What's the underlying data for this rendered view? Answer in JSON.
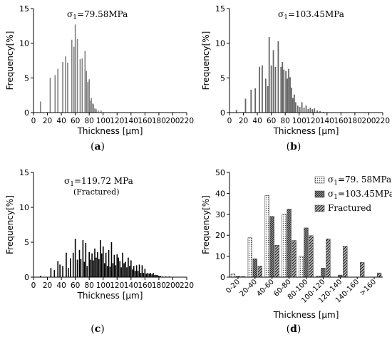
{
  "chart_data": [
    {
      "type": "bar",
      "panel_caption": "(a)",
      "annotation": "σ1=79.58MPa",
      "xlabel": "Thickness [μm]",
      "ylabel": "Frequency[%]",
      "xlim": [
        0,
        220
      ],
      "ylim": [
        0,
        15
      ],
      "x_ticks": [
        0,
        20,
        40,
        60,
        80,
        100,
        120,
        140,
        160,
        180,
        200,
        220
      ],
      "y_ticks": [
        0,
        5,
        10,
        15
      ],
      "grid": false,
      "color": "#808080",
      "x": [
        10,
        24,
        31,
        35,
        42,
        46,
        49,
        55,
        58,
        60,
        63,
        67,
        70,
        74,
        76,
        78,
        80,
        81,
        83,
        85,
        86,
        88,
        90,
        93,
        97
      ],
      "values": [
        1.6,
        5.0,
        5.4,
        6.3,
        7.3,
        8.1,
        7.2,
        10.5,
        9.5,
        12.7,
        10.6,
        7.7,
        7.8,
        8.9,
        6.0,
        4.4,
        4.8,
        1.7,
        2.1,
        1.3,
        1.2,
        0.6,
        0.5,
        0.3,
        0.3
      ]
    },
    {
      "type": "bar",
      "panel_caption": "(b)",
      "annotation": "σ1=103.45MPa",
      "xlabel": "Thickness [μm]",
      "ylabel": "Frequency[%]",
      "xlim": [
        0,
        220
      ],
      "ylim": [
        0,
        15
      ],
      "x_ticks": [
        0,
        20,
        40,
        60,
        80,
        100,
        120,
        140,
        160,
        180,
        200,
        220
      ],
      "y_ticks": [
        0,
        5,
        10,
        15
      ],
      "grid": false,
      "color": "#666666",
      "x": [
        10,
        23,
        31,
        37,
        43,
        47,
        52,
        55,
        57,
        60,
        63,
        66,
        70,
        74,
        76,
        78,
        81,
        83,
        85,
        87,
        89,
        91,
        93,
        95,
        98,
        101,
        104,
        107,
        110,
        113,
        116,
        119,
        122,
        126,
        130,
        135
      ],
      "values": [
        0.4,
        2.0,
        3.3,
        3.5,
        6.6,
        6.8,
        4.9,
        3.8,
        10.9,
        6.8,
        9.0,
        6.6,
        10.3,
        6.6,
        7.3,
        6.2,
        6.0,
        4.9,
        6.3,
        5.1,
        3.6,
        2.1,
        2.6,
        1.5,
        1.0,
        0.8,
        1.5,
        0.7,
        1.0,
        0.5,
        0.7,
        0.5,
        0.6,
        0.3,
        0.2,
        0.1
      ]
    },
    {
      "type": "bar",
      "panel_caption": "(c)",
      "annotation": "σ1=119.72 MPa",
      "annotation2": "(Fractured)",
      "xlabel": "Thickness [μm]",
      "ylabel": "Frequency[%]",
      "xlim": [
        0,
        220
      ],
      "ylim": [
        0,
        15
      ],
      "x_ticks": [
        0,
        20,
        40,
        60,
        80,
        100,
        120,
        140,
        160,
        180,
        200,
        220
      ],
      "y_ticks": [
        0,
        5,
        10,
        15
      ],
      "grid": false,
      "color": "#000000",
      "x": [
        10,
        25,
        30,
        35,
        38,
        42,
        47,
        50,
        53,
        57,
        60,
        63,
        66,
        68,
        71,
        73,
        75,
        77,
        80,
        82,
        84,
        86,
        88,
        90,
        92,
        94,
        96,
        98,
        100,
        102,
        104,
        106,
        108,
        110,
        112,
        114,
        116,
        118,
        120,
        122,
        124,
        126,
        128,
        130,
        132,
        134,
        136,
        138,
        140,
        142,
        144,
        146,
        148,
        150,
        152,
        154,
        156,
        158,
        160,
        162,
        164,
        166,
        168,
        170,
        172,
        174,
        176,
        178,
        180,
        182,
        185,
        190,
        195
      ],
      "values": [
        0.2,
        1.3,
        1.0,
        2.3,
        1.8,
        1.6,
        3.5,
        1.3,
        2.7,
        3.5,
        5.5,
        2.5,
        3.9,
        2.6,
        5.3,
        2.2,
        4.9,
        1.6,
        3.6,
        2.5,
        3.4,
        2.4,
        4.1,
        2.8,
        3.6,
        2.6,
        5.3,
        3.4,
        4.4,
        2.0,
        3.5,
        1.6,
        3.9,
        1.5,
        5.0,
        2.0,
        3.2,
        1.7,
        3.3,
        2.8,
        2.3,
        1.4,
        3.5,
        2.0,
        2.2,
        1.4,
        2.8,
        1.6,
        2.4,
        1.1,
        1.6,
        0.9,
        1.7,
        0.9,
        1.8,
        0.6,
        1.7,
        0.6,
        1.2,
        0.5,
        0.6,
        0.5,
        0.6,
        0.4,
        0.6,
        0.3,
        0.3,
        0.3,
        0.2,
        0.2,
        0.1,
        0.1,
        0.1
      ]
    },
    {
      "type": "bar",
      "panel_caption": "(d)",
      "xlabel": "Thickness [μm]",
      "ylabel": "Frequency[%]",
      "ylim": [
        0,
        50
      ],
      "y_ticks": [
        0,
        10,
        20,
        30,
        40,
        50
      ],
      "grid": false,
      "legend_position": "top-right",
      "categories": [
        "0-20",
        "20-40",
        "40-60",
        "60-80",
        "80-100",
        "100-120",
        "120-140",
        "140-160",
        ">160"
      ],
      "series": [
        {
          "name": "σ1=79. 58MPa",
          "pattern": "dots",
          "values": [
            1.6,
            18.8,
            39.0,
            30.0,
            10.0,
            0.6,
            0,
            0,
            0
          ]
        },
        {
          "name": "σ1=103.45MPa",
          "pattern": "crosshatch",
          "values": [
            0.4,
            8.8,
            29.0,
            32.5,
            23.5,
            4.3,
            1.0,
            0,
            0
          ]
        },
        {
          "name": "Fractured",
          "pattern": "diagonal",
          "values": [
            0.3,
            5.3,
            15.2,
            17.5,
            19.8,
            18.3,
            14.8,
            7.0,
            2.0
          ]
        }
      ]
    }
  ]
}
